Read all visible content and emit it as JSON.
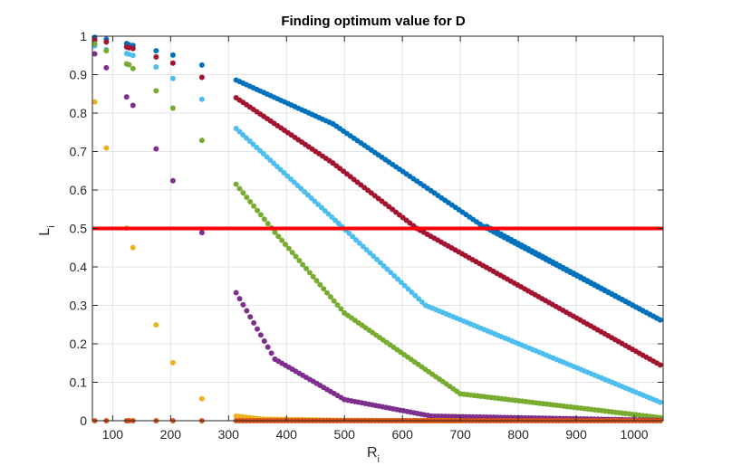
{
  "chart_data": {
    "type": "scatter",
    "title": "Finding optimum value for D",
    "xlabel": "R",
    "xlabel_sub": "i",
    "ylabel": "L",
    "ylabel_sub": "i",
    "xlim": [
      65,
      1050
    ],
    "ylim": [
      0,
      1
    ],
    "xticks": [
      100,
      200,
      300,
      400,
      500,
      600,
      700,
      800,
      900,
      1000
    ],
    "yticks": [
      0,
      0.1,
      0.2,
      0.3,
      0.4,
      0.5,
      0.6,
      0.7,
      0.8,
      0.9,
      1
    ],
    "ytick_labels": [
      "0",
      "0.1",
      "0.2",
      "0.3",
      "0.4",
      "0.5",
      "0.6",
      "0.7",
      "0.8",
      "0.9",
      "1"
    ],
    "grid": true,
    "threshold": {
      "y": 0.5,
      "color": "#ff0000"
    },
    "point_radius": 3,
    "series": [
      {
        "color": "#0072bd",
        "discrete": [
          [
            69,
            0.997
          ],
          [
            89,
            0.992
          ],
          [
            124,
            0.981
          ],
          [
            128,
            0.978
          ],
          [
            135,
            0.976
          ],
          [
            175,
            0.962
          ],
          [
            204,
            0.951
          ],
          [
            254,
            0.925
          ]
        ],
        "segments": [
          {
            "x": [
              [
                313,
                0.886
              ],
              [
                480,
                0.772
              ],
              [
                740,
                0.505
              ],
              [
                1045,
                0.262
              ]
            ]
          },
          {
            "x": [
              [
                746,
                0.505
              ],
              [
                1045,
                0.262
              ]
            ]
          }
        ]
      },
      {
        "color": "#a2142f",
        "discrete": [
          [
            69,
            0.99
          ],
          [
            89,
            0.985
          ],
          [
            124,
            0.972
          ],
          [
            128,
            0.97
          ],
          [
            135,
            0.968
          ],
          [
            175,
            0.946
          ],
          [
            204,
            0.93
          ],
          [
            254,
            0.893
          ]
        ],
        "segments": [
          {
            "x": [
              [
                313,
                0.84
              ],
              [
                480,
                0.67
              ],
              [
                625,
                0.5
              ],
              [
                1045,
                0.145
              ]
            ]
          }
        ]
      },
      {
        "color": "#4dbeee",
        "discrete": [
          [
            69,
            0.975
          ],
          [
            89,
            0.965
          ],
          [
            124,
            0.955
          ],
          [
            128,
            0.953
          ],
          [
            135,
            0.95
          ],
          [
            175,
            0.92
          ],
          [
            204,
            0.89
          ],
          [
            254,
            0.836
          ]
        ],
        "segments": [
          {
            "x": [
              [
                313,
                0.76
              ],
              [
                490,
                0.513
              ],
              [
                640,
                0.3
              ],
              [
                1045,
                0.048
              ]
            ]
          }
        ]
      },
      {
        "color": "#77ac30",
        "discrete": [
          [
            69,
            0.98
          ],
          [
            89,
            0.962
          ],
          [
            124,
            0.928
          ],
          [
            128,
            0.926
          ],
          [
            135,
            0.916
          ],
          [
            175,
            0.858
          ],
          [
            204,
            0.813
          ],
          [
            254,
            0.729
          ]
        ],
        "segments": [
          {
            "x": [
              [
                313,
                0.615
              ],
              [
                380,
                0.49
              ],
              [
                500,
                0.28
              ],
              [
                700,
                0.07
              ],
              [
                1045,
                0.008
              ]
            ]
          }
        ]
      },
      {
        "color": "#7e2f8e",
        "discrete": [
          [
            69,
            0.954
          ],
          [
            89,
            0.918
          ],
          [
            124,
            0.842
          ],
          [
            135,
            0.82
          ],
          [
            175,
            0.707
          ],
          [
            204,
            0.624
          ],
          [
            254,
            0.489
          ]
        ],
        "segments": [
          {
            "x": [
              [
                313,
                0.333
              ],
              [
                380,
                0.16
              ],
              [
                500,
                0.055
              ],
              [
                650,
                0.012
              ],
              [
                1045,
                0.001
              ]
            ]
          }
        ]
      },
      {
        "color": "#edb120",
        "discrete": [
          [
            69,
            0.829
          ],
          [
            89,
            0.709
          ],
          [
            124,
            0.501
          ],
          [
            135,
            0.45
          ],
          [
            175,
            0.249
          ],
          [
            204,
            0.151
          ],
          [
            254,
            0.057
          ]
        ],
        "segments": [
          {
            "x": [
              [
                313,
                0.012
              ],
              [
                360,
                0.004
              ],
              [
                500,
                0.001
              ],
              [
                700,
                0.0
              ]
            ]
          }
        ]
      },
      {
        "color": "#d95319",
        "discrete": [
          [
            69,
            0.0
          ],
          [
            89,
            0.0
          ],
          [
            124,
            0.0
          ],
          [
            128,
            0.0
          ],
          [
            135,
            0.0
          ],
          [
            175,
            0.0
          ],
          [
            204,
            0.0
          ],
          [
            254,
            0.0
          ]
        ],
        "segments": [
          {
            "x": [
              [
                313,
                0.0
              ],
              [
                1045,
                0.0
              ]
            ]
          }
        ]
      }
    ]
  }
}
